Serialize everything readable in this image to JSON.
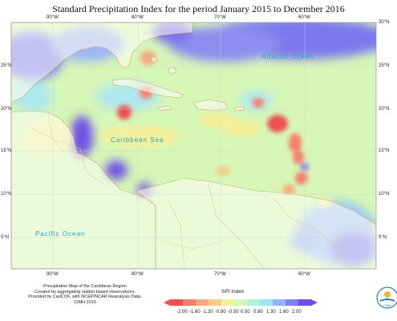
{
  "title": "Standard Precipitation Index for the period January 2015 to December 2016",
  "axes": {
    "top": [
      "90°W",
      "80°W",
      "70°W",
      "60°W"
    ],
    "bottom": [
      "90°W",
      "80°W",
      "70°W",
      "60°W"
    ],
    "left": [
      "25°N",
      "20°N",
      "15°N",
      "10°N",
      "5°N"
    ],
    "right": [
      "30°N",
      "25°N",
      "20°N",
      "15°N",
      "10°N",
      "5°N"
    ]
  },
  "labels": {
    "atlantic": "Atlantic Ocean",
    "caribbean": "Caribbean Sea",
    "pacific": "Pacific Ocean"
  },
  "caption": [
    "Precipitation Map of the Caribbean Region",
    "Created by aggregating station based observations.",
    "Provided by CariCOF, with NCEP/NCAR Reanalysis Data.",
    "CIMH 2016"
  ],
  "legend": {
    "title": "SPI Index",
    "labels": [
      "-2.00",
      "-1.60",
      "-1.30",
      "-0.80",
      "-0.50",
      "0.50",
      "0.80",
      "1.30",
      "1.60",
      "2.00"
    ],
    "colors": [
      "#ee4f4f",
      "#f57f6a",
      "#f6a97e",
      "#f6cc88",
      "#f4ef99",
      "#d5f7b8",
      "#b3f1d7",
      "#9fe3f3",
      "#8fb4f3",
      "#7f7ff0",
      "#6f4fe6"
    ]
  },
  "logo_text": "CIMH",
  "colors": {
    "land": "#fffef6",
    "border": "#e7c89a",
    "coast": "#cda76f",
    "sea_base": "#d6f7b6",
    "wet": "#6f6fe6",
    "dry": "#f05a50"
  }
}
